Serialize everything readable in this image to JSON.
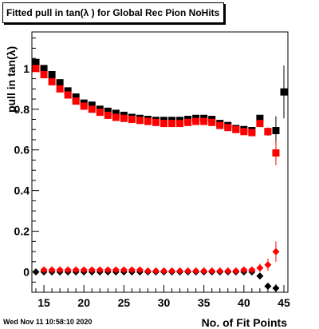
{
  "title": "Fitted pull in tan(λ ) for Global Rec Pion NoHits",
  "timestamp": "Wed Nov 11 10:58:10 2020",
  "chart_data": {
    "type": "scatter",
    "xlabel": "No. of Fit Points",
    "ylabel": "pull in tan(λ)",
    "xlim": [
      13.5,
      45.5
    ],
    "ylim": [
      -0.1,
      1.18
    ],
    "xticks": [
      15,
      20,
      25,
      30,
      35,
      40,
      45
    ],
    "yticks": [
      0,
      0.2,
      0.4,
      0.6,
      0.8,
      1
    ],
    "grid": false,
    "colors": {
      "black": "#000000",
      "red": "#ff0000"
    },
    "series": [
      {
        "marker": "square",
        "color": "#000000",
        "x": [
          14,
          15,
          16,
          17,
          18,
          19,
          20,
          21,
          22,
          23,
          24,
          25,
          26,
          27,
          28,
          29,
          30,
          31,
          32,
          33,
          34,
          35,
          36,
          37,
          38,
          39,
          40,
          41,
          42,
          43,
          44,
          45
        ],
        "y": [
          1.03,
          1.0,
          0.97,
          0.93,
          0.89,
          0.86,
          0.83,
          0.82,
          0.8,
          0.79,
          0.78,
          0.77,
          0.76,
          0.755,
          0.75,
          0.745,
          0.745,
          0.745,
          0.745,
          0.75,
          0.755,
          0.755,
          0.75,
          0.73,
          0.72,
          0.705,
          0.7,
          0.695,
          0.755,
          0.69,
          0.695,
          0.885
        ],
        "err": [
          0,
          0,
          0,
          0,
          0,
          0,
          0,
          0,
          0,
          0,
          0,
          0,
          0,
          0,
          0,
          0,
          0,
          0,
          0,
          0,
          0,
          0,
          0,
          0,
          0,
          0,
          0,
          0,
          0.015,
          0.02,
          0.07,
          0.13
        ]
      },
      {
        "marker": "square",
        "color": "#ff0000",
        "x": [
          14,
          15,
          16,
          17,
          18,
          19,
          20,
          21,
          22,
          23,
          24,
          25,
          26,
          27,
          28,
          29,
          30,
          31,
          32,
          33,
          34,
          35,
          36,
          37,
          38,
          39,
          40,
          41,
          42,
          43,
          44
        ],
        "y": [
          1.0,
          0.97,
          0.935,
          0.9,
          0.87,
          0.84,
          0.815,
          0.8,
          0.785,
          0.77,
          0.76,
          0.755,
          0.75,
          0.745,
          0.74,
          0.735,
          0.73,
          0.73,
          0.73,
          0.735,
          0.74,
          0.74,
          0.735,
          0.72,
          0.71,
          0.7,
          0.69,
          0.685,
          0.73,
          0.69,
          0.585
        ],
        "err": [
          0,
          0,
          0,
          0,
          0,
          0,
          0,
          0,
          0,
          0,
          0,
          0,
          0,
          0,
          0,
          0,
          0,
          0,
          0,
          0,
          0,
          0,
          0,
          0,
          0,
          0,
          0,
          0,
          0.015,
          0.02,
          0.06
        ]
      },
      {
        "marker": "diamond",
        "color": "#000000",
        "x": [
          14,
          15,
          16,
          17,
          18,
          19,
          20,
          21,
          22,
          23,
          24,
          25,
          26,
          27,
          28,
          29,
          30,
          31,
          32,
          33,
          34,
          35,
          36,
          37,
          38,
          39,
          40,
          41,
          42,
          43,
          44
        ],
        "y": [
          0,
          0,
          0,
          0,
          0,
          0,
          0,
          0,
          0,
          0,
          0,
          0,
          0,
          0,
          0,
          0,
          0,
          0,
          0,
          0,
          0,
          0,
          0,
          0,
          0,
          0,
          0,
          0,
          -0.02,
          -0.07,
          -0.08
        ],
        "err": [
          0,
          0,
          0,
          0,
          0,
          0,
          0,
          0,
          0,
          0,
          0,
          0,
          0,
          0,
          0,
          0,
          0,
          0,
          0,
          0,
          0,
          0,
          0,
          0,
          0,
          0,
          0,
          0,
          0.01,
          0.01,
          0.02
        ]
      },
      {
        "marker": "diamond",
        "color": "#ff0000",
        "x": [
          15,
          16,
          17,
          18,
          19,
          20,
          21,
          22,
          23,
          24,
          25,
          26,
          27,
          28,
          29,
          30,
          31,
          32,
          33,
          34,
          35,
          36,
          37,
          38,
          39,
          40,
          41,
          42,
          43,
          44
        ],
        "y": [
          0.01,
          0.01,
          0.01,
          0.01,
          0.01,
          0.01,
          0.01,
          0.01,
          0.01,
          0.01,
          0.01,
          0.01,
          0.01,
          0.005,
          0.005,
          0.005,
          0.005,
          0.005,
          0.005,
          0.005,
          0.005,
          0.005,
          0.005,
          0.005,
          0.005,
          0.01,
          0.01,
          0.02,
          0.035,
          0.1
        ],
        "err": [
          0,
          0,
          0,
          0,
          0,
          0,
          0,
          0,
          0,
          0,
          0,
          0,
          0,
          0,
          0,
          0,
          0,
          0,
          0,
          0,
          0,
          0,
          0,
          0,
          0,
          0,
          0,
          0.02,
          0.03,
          0.05
        ]
      }
    ]
  }
}
